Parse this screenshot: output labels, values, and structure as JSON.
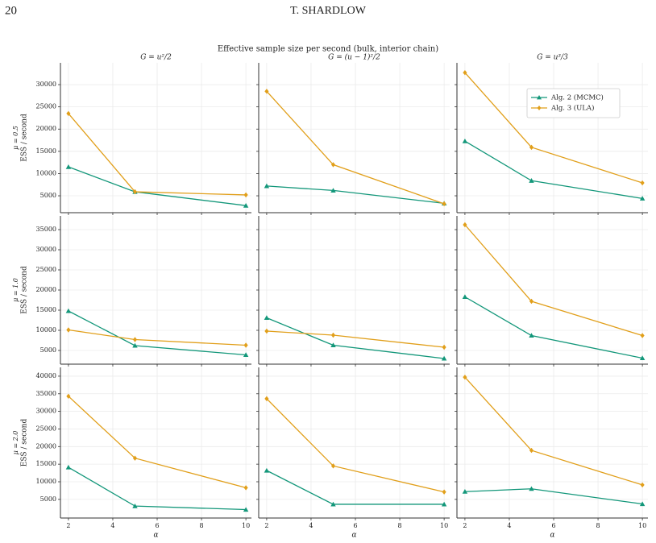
{
  "header": {
    "page": "20",
    "running_title": "T. SHARDLOW"
  },
  "figure": {
    "title": "Effective sample size per second (bulk, interior chain)"
  },
  "chart_data": [
    {
      "type": "line",
      "title": "G = u²/2",
      "row_label": "μ = 0.5",
      "ylabel": "ESS / second",
      "x": [
        2,
        5,
        10
      ],
      "series": [
        {
          "color": "#13977a",
          "marker": "triangle",
          "values": [
            11500,
            5900,
            2800
          ]
        },
        {
          "color": "#e19f1a",
          "marker": "diamond",
          "values": [
            23500,
            5900,
            5200
          ]
        }
      ],
      "xlim": [
        1.64,
        10.25
      ],
      "ylim": [
        1200,
        34900
      ],
      "xticks": [
        2,
        4,
        6,
        8,
        10
      ],
      "yticks": [
        5000,
        10000,
        15000,
        20000,
        25000,
        30000
      ],
      "grid": true,
      "show_xtick_labels": false,
      "show_ytick_labels": true
    },
    {
      "type": "line",
      "title": "G = (u − 1)²/2",
      "x": [
        2,
        5,
        10
      ],
      "series": [
        {
          "color": "#13977a",
          "marker": "triangle",
          "values": [
            7200,
            6200,
            3300
          ]
        },
        {
          "color": "#e19f1a",
          "marker": "diamond",
          "values": [
            28500,
            12000,
            3200
          ]
        }
      ],
      "xlim": [
        1.64,
        10.25
      ],
      "ylim": [
        1200,
        34900
      ],
      "xticks": [
        2,
        4,
        6,
        8,
        10
      ],
      "yticks": [
        5000,
        10000,
        15000,
        20000,
        25000,
        30000
      ],
      "grid": true,
      "show_xtick_labels": false,
      "show_ytick_labels": false
    },
    {
      "type": "line",
      "title": "G = u³/3",
      "x": [
        2,
        5,
        10
      ],
      "series": [
        {
          "name": "Alg. 2 (MCMC)",
          "color": "#13977a",
          "marker": "triangle",
          "values": [
            17300,
            8400,
            4400
          ]
        },
        {
          "name": "Alg. 3 (ULA)",
          "color": "#e19f1a",
          "marker": "diamond",
          "values": [
            32700,
            15900,
            7900
          ]
        }
      ],
      "xlim": [
        1.64,
        10.25
      ],
      "ylim": [
        1200,
        34900
      ],
      "xticks": [
        2,
        4,
        6,
        8,
        10
      ],
      "yticks": [
        5000,
        10000,
        15000,
        20000,
        25000,
        30000
      ],
      "grid": true,
      "legend": "upper right",
      "show_xtick_labels": false,
      "show_ytick_labels": false
    },
    {
      "type": "line",
      "row_label": "μ = 1.0",
      "ylabel": "ESS / second",
      "x": [
        2,
        5,
        10
      ],
      "series": [
        {
          "color": "#13977a",
          "marker": "triangle",
          "values": [
            14800,
            6200,
            3900
          ]
        },
        {
          "color": "#e19f1a",
          "marker": "diamond",
          "values": [
            10100,
            7700,
            6300
          ]
        }
      ],
      "xlim": [
        1.64,
        10.25
      ],
      "ylim": [
        1600,
        38400
      ],
      "xticks": [
        2,
        4,
        6,
        8,
        10
      ],
      "yticks": [
        5000,
        10000,
        15000,
        20000,
        25000,
        30000,
        35000
      ],
      "grid": true,
      "show_xtick_labels": false,
      "show_ytick_labels": true
    },
    {
      "type": "line",
      "x": [
        2,
        5,
        10
      ],
      "series": [
        {
          "color": "#13977a",
          "marker": "triangle",
          "values": [
            13100,
            6300,
            3000
          ]
        },
        {
          "color": "#e19f1a",
          "marker": "diamond",
          "values": [
            9800,
            8800,
            5800
          ]
        }
      ],
      "xlim": [
        1.64,
        10.25
      ],
      "ylim": [
        1600,
        38400
      ],
      "xticks": [
        2,
        4,
        6,
        8,
        10
      ],
      "yticks": [
        5000,
        10000,
        15000,
        20000,
        25000,
        30000,
        35000
      ],
      "grid": true,
      "show_xtick_labels": false,
      "show_ytick_labels": false
    },
    {
      "type": "line",
      "x": [
        2,
        5,
        10
      ],
      "series": [
        {
          "color": "#13977a",
          "marker": "triangle",
          "values": [
            18300,
            8700,
            3100
          ]
        },
        {
          "color": "#e19f1a",
          "marker": "diamond",
          "values": [
            36200,
            17200,
            8700
          ]
        }
      ],
      "xlim": [
        1.64,
        10.25
      ],
      "ylim": [
        1600,
        38400
      ],
      "xticks": [
        2,
        4,
        6,
        8,
        10
      ],
      "yticks": [
        5000,
        10000,
        15000,
        20000,
        25000,
        30000,
        35000
      ],
      "grid": true,
      "show_xtick_labels": false,
      "show_ytick_labels": false
    },
    {
      "type": "line",
      "row_label": "μ = 2.0",
      "ylabel": "ESS / second",
      "xlabel": "α",
      "x": [
        2,
        5,
        10
      ],
      "series": [
        {
          "color": "#13977a",
          "marker": "triangle",
          "values": [
            14100,
            3100,
            2100
          ]
        },
        {
          "color": "#e19f1a",
          "marker": "diamond",
          "values": [
            34300,
            16700,
            8300
          ]
        }
      ],
      "xlim": [
        1.64,
        10.25
      ],
      "ylim": [
        -300,
        42500
      ],
      "xticks": [
        2,
        4,
        6,
        8,
        10
      ],
      "yticks": [
        5000,
        10000,
        15000,
        20000,
        25000,
        30000,
        35000,
        40000
      ],
      "grid": true,
      "show_xtick_labels": true,
      "show_ytick_labels": true
    },
    {
      "type": "line",
      "xlabel": "α",
      "x": [
        2,
        5,
        10
      ],
      "series": [
        {
          "color": "#13977a",
          "marker": "triangle",
          "values": [
            13200,
            3600,
            3600
          ]
        },
        {
          "color": "#e19f1a",
          "marker": "diamond",
          "values": [
            33600,
            14500,
            7100
          ]
        }
      ],
      "xlim": [
        1.64,
        10.25
      ],
      "ylim": [
        -300,
        42500
      ],
      "xticks": [
        2,
        4,
        6,
        8,
        10
      ],
      "yticks": [
        5000,
        10000,
        15000,
        20000,
        25000,
        30000,
        35000,
        40000
      ],
      "grid": true,
      "show_xtick_labels": true,
      "show_ytick_labels": false
    },
    {
      "type": "line",
      "xlabel": "α",
      "x": [
        2,
        5,
        10
      ],
      "series": [
        {
          "color": "#13977a",
          "marker": "triangle",
          "values": [
            7200,
            8000,
            3700
          ]
        },
        {
          "color": "#e19f1a",
          "marker": "diamond",
          "values": [
            39700,
            18900,
            9100
          ]
        }
      ],
      "xlim": [
        1.64,
        10.25
      ],
      "ylim": [
        -300,
        42500
      ],
      "xticks": [
        2,
        4,
        6,
        8,
        10
      ],
      "yticks": [
        5000,
        10000,
        15000,
        20000,
        25000,
        30000,
        35000,
        40000
      ],
      "grid": true,
      "show_xtick_labels": true,
      "show_ytick_labels": false
    }
  ]
}
